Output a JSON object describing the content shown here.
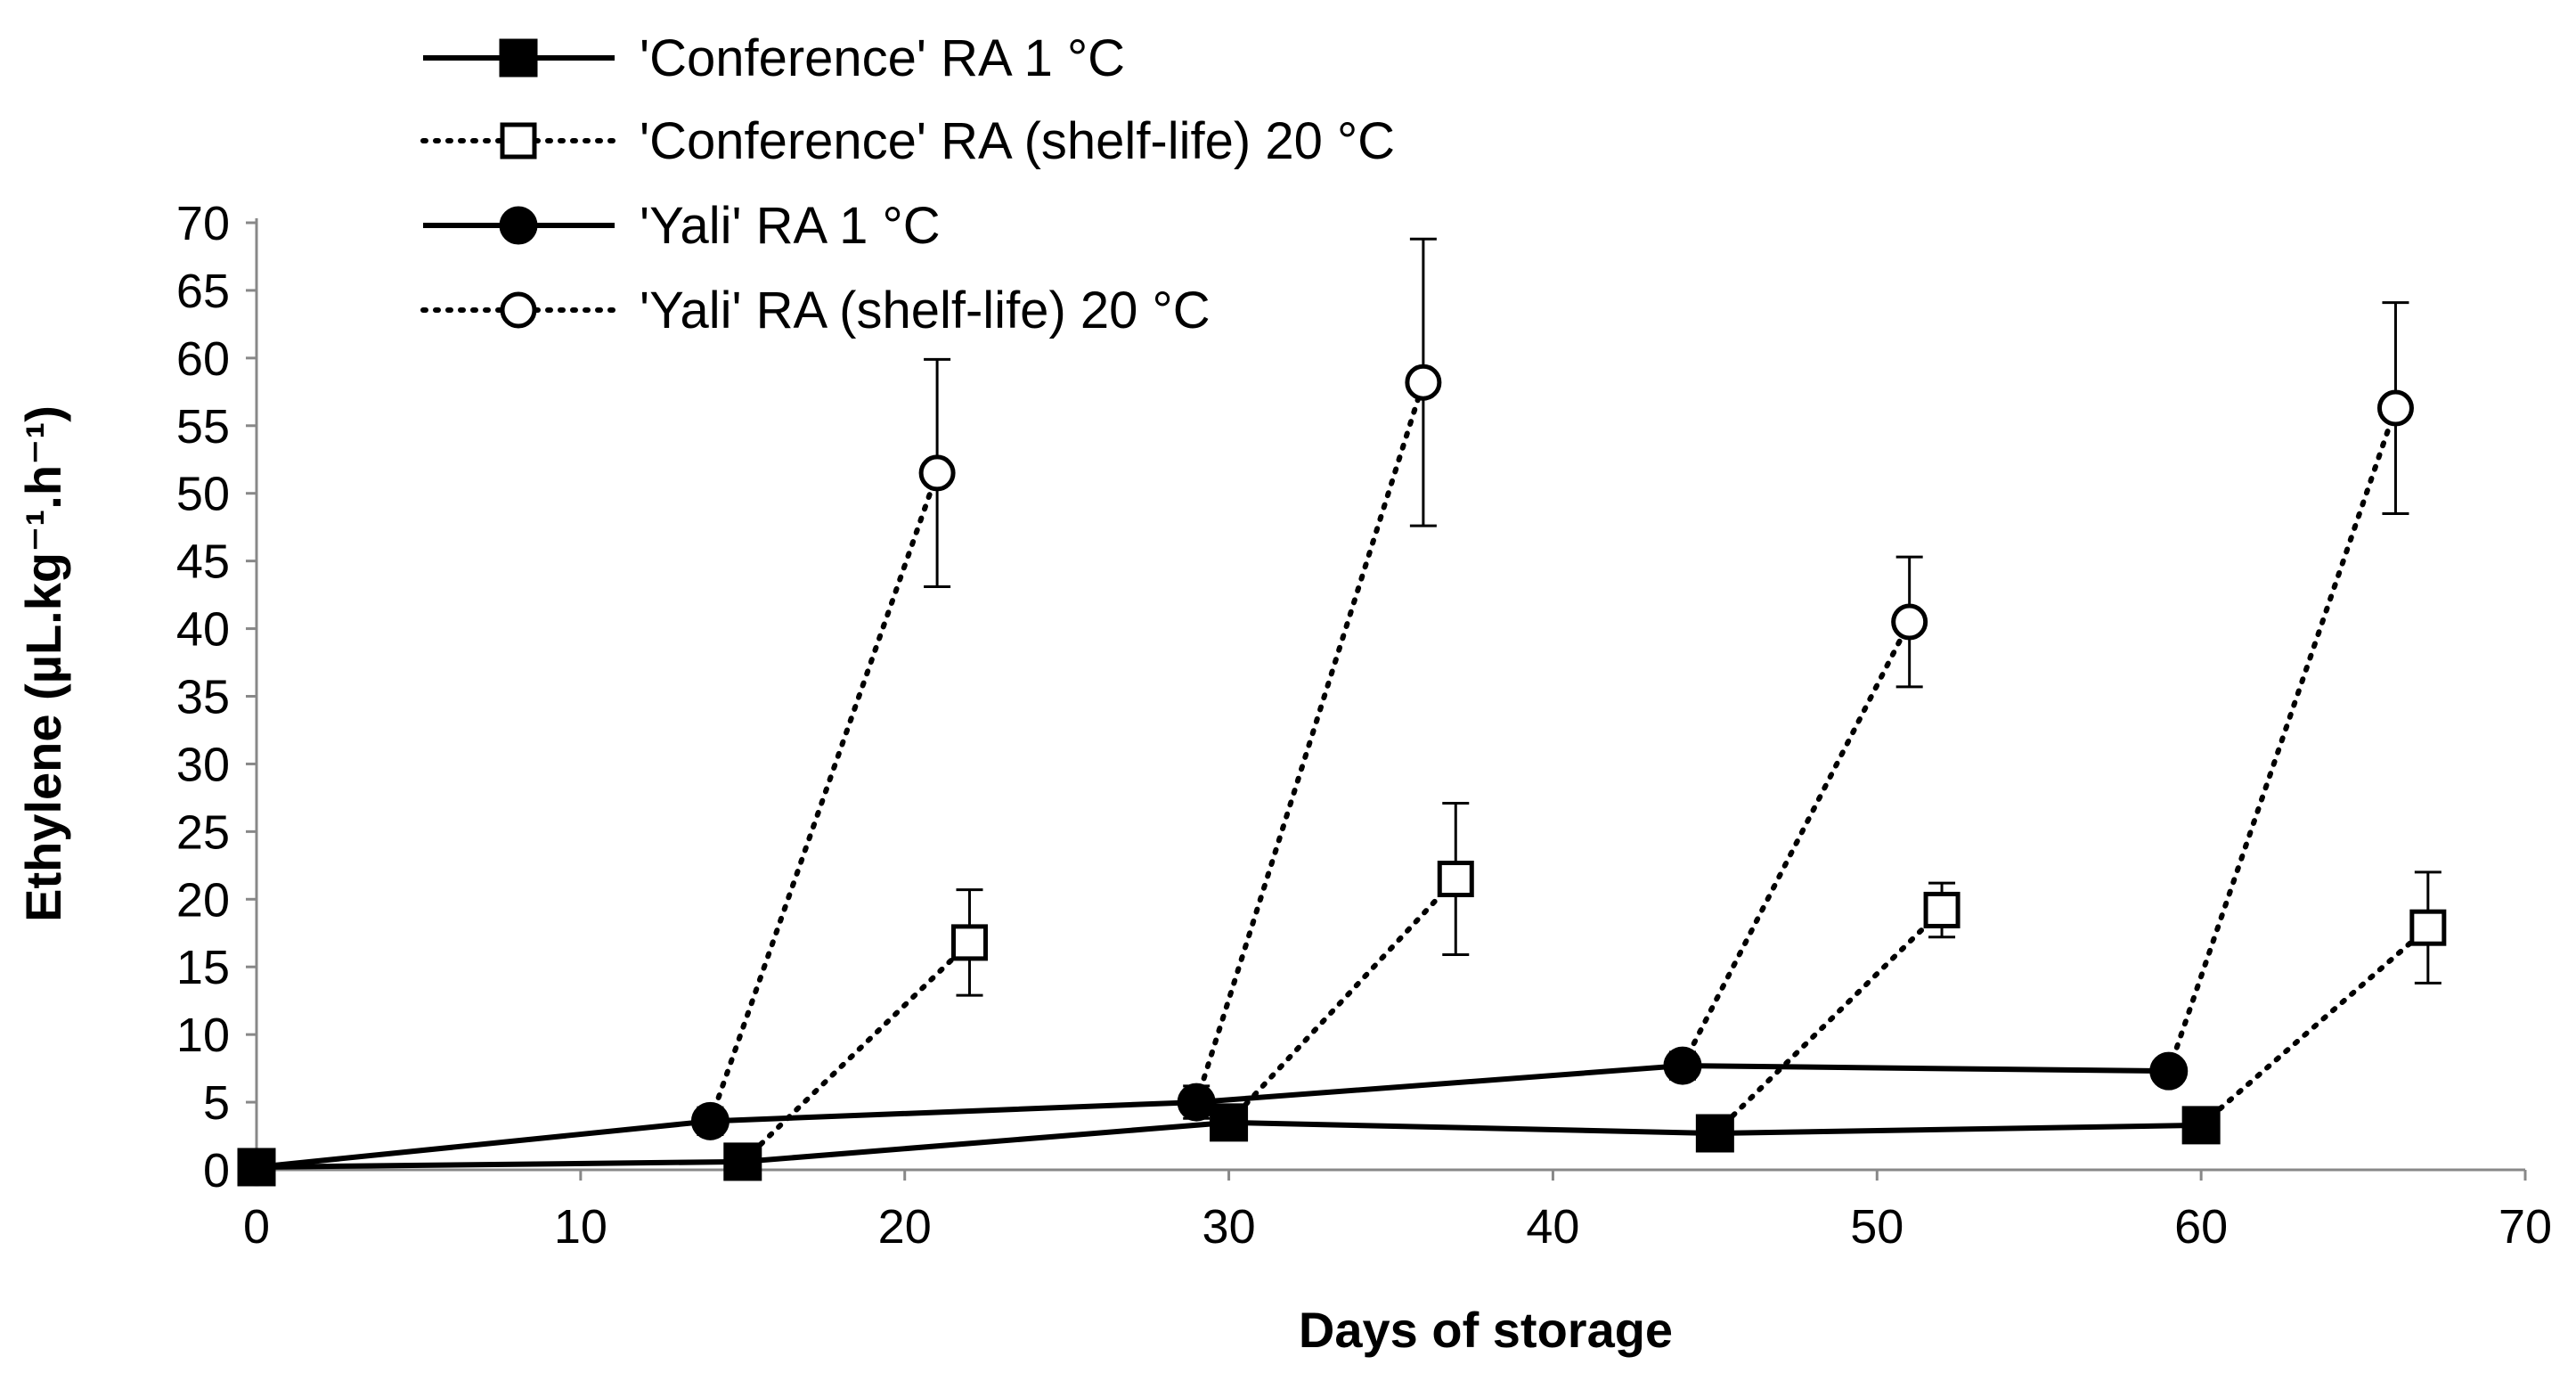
{
  "chart_data": {
    "type": "line",
    "title": "",
    "xlabel": "Days of storage",
    "ylabel": "Ethylene (µL.kg⁻¹.h⁻¹)",
    "xlim": [
      0,
      70
    ],
    "ylim": [
      0,
      70
    ],
    "xticks": [
      0,
      10,
      20,
      30,
      40,
      50,
      60,
      70
    ],
    "yticks": [
      0,
      5,
      10,
      15,
      20,
      25,
      30,
      35,
      40,
      45,
      50,
      55,
      60,
      65,
      70
    ],
    "grid": false,
    "legend_position": "top-left",
    "series": [
      {
        "name": "'Conference' RA 1 °C",
        "line": "solid",
        "marker": "filled-square",
        "points": [
          {
            "x": 0,
            "y": 0.2
          },
          {
            "x": 15,
            "y": 0.6
          },
          {
            "x": 30,
            "y": 3.5
          },
          {
            "x": 45,
            "y": 2.7
          },
          {
            "x": 60,
            "y": 3.3
          }
        ]
      },
      {
        "name": "'Conference' RA (shelf-life) 20 °C",
        "line": "dotted",
        "marker": "open-square",
        "segments": [
          [
            {
              "x": 15,
              "y": 0.6
            },
            {
              "x": 22,
              "y": 16.8,
              "err": 3.9
            }
          ],
          [
            {
              "x": 30,
              "y": 3.5
            },
            {
              "x": 37,
              "y": 21.5,
              "err": 5.6
            }
          ],
          [
            {
              "x": 45,
              "y": 2.7
            },
            {
              "x": 52,
              "y": 19.2,
              "err": 2.0
            }
          ],
          [
            {
              "x": 60,
              "y": 3.3
            },
            {
              "x": 67,
              "y": 17.9,
              "err": 4.1
            }
          ]
        ]
      },
      {
        "name": "'Yali' RA 1 °C",
        "line": "solid",
        "marker": "filled-circle",
        "points": [
          {
            "x": 0,
            "y": 0.2
          },
          {
            "x": 14,
            "y": 3.6,
            "err": 1.0
          },
          {
            "x": 29,
            "y": 5.0,
            "err": 1.2
          },
          {
            "x": 44,
            "y": 7.7,
            "err": 1.0
          },
          {
            "x": 59,
            "y": 7.3
          }
        ]
      },
      {
        "name": "'Yali' RA (shelf-life) 20 °C",
        "line": "dotted",
        "marker": "open-circle",
        "segments": [
          [
            {
              "x": 14,
              "y": 3.6
            },
            {
              "x": 21,
              "y": 51.5,
              "err": 8.4
            }
          ],
          [
            {
              "x": 29,
              "y": 5.0
            },
            {
              "x": 36,
              "y": 58.2,
              "err": 10.6
            }
          ],
          [
            {
              "x": 44,
              "y": 7.7
            },
            {
              "x": 51,
              "y": 40.5,
              "err": 4.8
            }
          ],
          [
            {
              "x": 59,
              "y": 7.3
            },
            {
              "x": 66,
              "y": 56.3,
              "err": 7.8
            }
          ]
        ]
      }
    ]
  }
}
